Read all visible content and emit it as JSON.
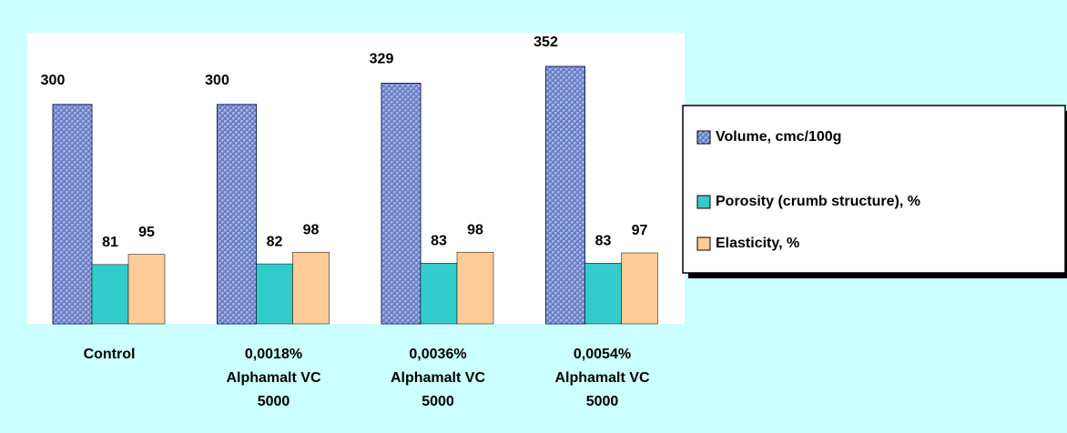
{
  "chart_data": {
    "type": "bar",
    "categories": [
      "Control",
      "0,0018% Alphamalt VC 5000",
      "0,0036% Alphamalt VC 5000",
      "0,0054% Alphamalt VC 5000"
    ],
    "series": [
      {
        "name": "Volume, cmc/100g",
        "color": "#6b7fc4",
        "values": [
          300,
          300,
          329,
          352
        ]
      },
      {
        "name": "Porosity (crumb structure), %",
        "color": "#33cccc",
        "values": [
          81,
          82,
          83,
          83
        ]
      },
      {
        "name": "Elasticity, %",
        "color": "#ffcc99",
        "values": [
          95,
          98,
          98,
          97
        ]
      }
    ],
    "legend": "right"
  }
}
